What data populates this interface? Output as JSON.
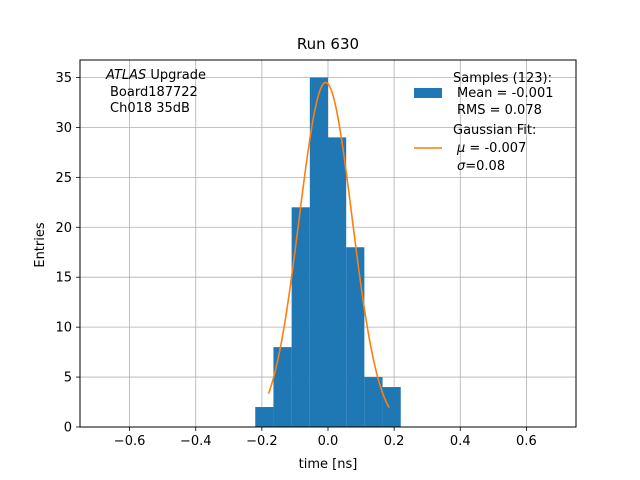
{
  "chart_data": {
    "type": "bar",
    "title": "Run 630",
    "xlabel": "time [ns]",
    "ylabel": "Entries",
    "xlim": [
      -0.75,
      0.75
    ],
    "ylim": [
      0,
      36.75
    ],
    "xticks": [
      -0.6,
      -0.4,
      -0.2,
      0.0,
      0.2,
      0.4,
      0.6
    ],
    "xtick_labels": [
      "−0.6",
      "−0.4",
      "−0.2",
      "0.0",
      "0.2",
      "0.4",
      "0.6"
    ],
    "yticks": [
      0,
      5,
      10,
      15,
      20,
      25,
      30,
      35
    ],
    "ytick_labels": [
      "0",
      "5",
      "10",
      "15",
      "20",
      "25",
      "30",
      "35"
    ],
    "grid": true,
    "legend_placement": "top-right",
    "histogram": {
      "bin_edges": [
        -0.22,
        -0.165,
        -0.11,
        -0.055,
        0.0,
        0.055,
        0.11,
        0.165,
        0.22
      ],
      "counts": [
        2,
        8,
        22,
        35,
        29,
        18,
        5,
        4
      ],
      "color": "#1f77b4"
    },
    "fit": {
      "amplitude": 34.5,
      "mu": -0.007,
      "sigma": 0.08,
      "x_range": [
        -0.18,
        0.185
      ],
      "color": "#ff7f0e"
    },
    "legend": {
      "samples_line1": "Samples (123):",
      "samples_line2": "Mean = -0.001",
      "samples_line3": "RMS = 0.078",
      "fit_line1": "Gaussian Fit:",
      "fit_mu_symbol": "μ",
      "fit_mu_value": " = -0.007",
      "fit_sigma_symbol": "σ",
      "fit_sigma_value": "=0.08"
    },
    "annotation": {
      "atlas": "ATLAS",
      "upgrade": " Upgrade",
      "board": "Board187722",
      "channel": "Ch018 35dB"
    }
  }
}
